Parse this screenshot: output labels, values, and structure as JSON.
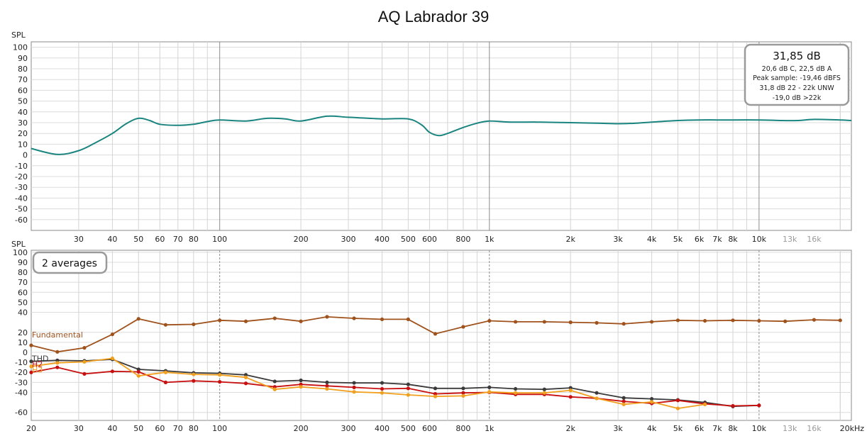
{
  "title": "AQ Labrador 39",
  "colors": {
    "frequency_response": "#1a8580",
    "fundamental": "#a0521c",
    "thd": "#3a3a3a",
    "h2": "#c81010",
    "h3": "#f0a01e"
  },
  "info_box": {
    "main": "31,85 dB",
    "lines": [
      "20,6 dB C, 22,5 dB A",
      "Peak sample: -19,46 dBFS",
      "31,8 dB 22 - 22k UNW",
      "-19,0 dB >22k"
    ]
  },
  "averages_label": "2 averages",
  "chart_data": [
    {
      "type": "line",
      "panel": "top",
      "y_unit_label": "SPL",
      "x_scale": "log",
      "xlim": [
        20,
        22000
      ],
      "ylim": [
        -70,
        105
      ],
      "grid": true,
      "y_ticks": [
        100,
        90,
        80,
        70,
        60,
        50,
        40,
        30,
        20,
        10,
        0,
        -10,
        -20,
        -30,
        -40,
        -50,
        -60
      ],
      "x_tick_labels": [
        {
          "v": 30,
          "t": "30"
        },
        {
          "v": 40,
          "t": "40"
        },
        {
          "v": 50,
          "t": "50"
        },
        {
          "v": 60,
          "t": "60"
        },
        {
          "v": 70,
          "t": "70"
        },
        {
          "v": 80,
          "t": "80"
        },
        {
          "v": 100,
          "t": "100"
        },
        {
          "v": 200,
          "t": "200"
        },
        {
          "v": 300,
          "t": "300"
        },
        {
          "v": 400,
          "t": "400"
        },
        {
          "v": 500,
          "t": "500"
        },
        {
          "v": 600,
          "t": "600"
        },
        {
          "v": 800,
          "t": "800"
        },
        {
          "v": 1000,
          "t": "1k"
        },
        {
          "v": 2000,
          "t": "2k"
        },
        {
          "v": 3000,
          "t": "3k"
        },
        {
          "v": 4000,
          "t": "4k"
        },
        {
          "v": 5000,
          "t": "5k"
        },
        {
          "v": 6000,
          "t": "6k"
        },
        {
          "v": 7000,
          "t": "7k"
        },
        {
          "v": 8000,
          "t": "8k"
        },
        {
          "v": 10000,
          "t": "10k"
        },
        {
          "v": 13000,
          "t": "13k",
          "dim": true
        },
        {
          "v": 16000,
          "t": "16k",
          "dim": true
        }
      ],
      "series": [
        {
          "key": "frequency_response",
          "x": [
            20,
            25,
            30,
            35,
            40,
            45,
            50,
            55,
            60,
            70,
            80,
            90,
            100,
            125,
            150,
            175,
            200,
            250,
            300,
            400,
            500,
            560,
            600,
            650,
            700,
            800,
            900,
            1000,
            1200,
            1500,
            2000,
            2500,
            3000,
            3500,
            4000,
            5000,
            6000,
            7000,
            8000,
            10000,
            12000,
            14000,
            16000,
            20000,
            22000
          ],
          "y": [
            6,
            0.5,
            4,
            12,
            20,
            29,
            34,
            32,
            28.5,
            27.5,
            28.5,
            31,
            32.5,
            31.5,
            34,
            33.5,
            31.5,
            36,
            35,
            33.5,
            33.5,
            28,
            21,
            18,
            20,
            25.5,
            29.5,
            31.5,
            30.5,
            30.5,
            30,
            29.5,
            29,
            29.5,
            30.5,
            32,
            32.5,
            32.5,
            32.5,
            32.5,
            32,
            32,
            33,
            32.5,
            32
          ]
        }
      ]
    },
    {
      "type": "line",
      "panel": "bottom",
      "y_unit_label": "SPL",
      "x_scale": "log",
      "xlim": [
        20,
        22000
      ],
      "ylim": [
        -68,
        102
      ],
      "grid": true,
      "y_ticks": [
        100,
        90,
        80,
        70,
        60,
        50,
        40,
        20,
        10,
        0,
        -10,
        -20,
        -30,
        -40,
        -60
      ],
      "x_tick_labels": [
        {
          "v": 20,
          "t": "20"
        },
        {
          "v": 30,
          "t": "30"
        },
        {
          "v": 40,
          "t": "40"
        },
        {
          "v": 50,
          "t": "50"
        },
        {
          "v": 60,
          "t": "60"
        },
        {
          "v": 70,
          "t": "70"
        },
        {
          "v": 80,
          "t": "80"
        },
        {
          "v": 100,
          "t": "100"
        },
        {
          "v": 200,
          "t": "200"
        },
        {
          "v": 300,
          "t": "300"
        },
        {
          "v": 400,
          "t": "400"
        },
        {
          "v": 500,
          "t": "500"
        },
        {
          "v": 600,
          "t": "600"
        },
        {
          "v": 800,
          "t": "800"
        },
        {
          "v": 1000,
          "t": "1k"
        },
        {
          "v": 2000,
          "t": "2k"
        },
        {
          "v": 3000,
          "t": "3k"
        },
        {
          "v": 4000,
          "t": "4k"
        },
        {
          "v": 5000,
          "t": "5k"
        },
        {
          "v": 6000,
          "t": "6k"
        },
        {
          "v": 7000,
          "t": "7k"
        },
        {
          "v": 8000,
          "t": "8k"
        },
        {
          "v": 10000,
          "t": "10k"
        },
        {
          "v": 13000,
          "t": "13k",
          "dim": true
        },
        {
          "v": 16000,
          "t": "16k",
          "dim": true
        },
        {
          "v": 20000,
          "t": "20kHz"
        }
      ],
      "series": [
        {
          "name": "Fundamental",
          "key": "fundamental",
          "x": [
            20,
            25,
            31.5,
            40,
            50,
            63,
            80,
            100,
            125,
            160,
            200,
            250,
            315,
            400,
            500,
            630,
            800,
            1000,
            1250,
            1600,
            2000,
            2500,
            3150,
            4000,
            5000,
            6300,
            8000,
            10000,
            12500,
            16000,
            20000
          ],
          "y": [
            7,
            0.5,
            4.5,
            18,
            33.5,
            27.5,
            28,
            32,
            31,
            34,
            31,
            35.5,
            34,
            33,
            33,
            18.5,
            25.5,
            31.5,
            30.5,
            30.5,
            30,
            29.5,
            28.5,
            30.5,
            32,
            31.5,
            32,
            31.5,
            31,
            32.5,
            32
          ]
        },
        {
          "name": "THD",
          "key": "thd",
          "x": [
            20,
            25,
            31.5,
            40,
            50,
            63,
            80,
            100,
            125,
            160,
            200,
            250,
            315,
            400,
            500,
            630,
            800,
            1000,
            1250,
            1600,
            2000,
            2500,
            3150,
            4000,
            5000,
            6300,
            8000,
            10000
          ],
          "y": [
            -9,
            -8,
            -8.5,
            -7,
            -17,
            -18.5,
            -20.5,
            -21,
            -22.5,
            -29,
            -28,
            -30,
            -30.5,
            -30.5,
            -32,
            -36,
            -36,
            -35,
            -36.5,
            -37,
            -35.5,
            -40.5,
            -45.5,
            -46.5,
            -47.5,
            -50,
            -54,
            -53
          ]
        },
        {
          "name": "H2",
          "key": "h2",
          "x": [
            20,
            25,
            31.5,
            40,
            50,
            63,
            80,
            100,
            125,
            160,
            200,
            250,
            315,
            400,
            500,
            630,
            800,
            1000,
            1250,
            1600,
            2000,
            2500,
            3150,
            4000,
            5000,
            6300,
            8000,
            10000
          ],
          "y": [
            -20,
            -15,
            -21.5,
            -19,
            -19.5,
            -30,
            -28.5,
            -29.5,
            -31,
            -34.5,
            -32,
            -33.5,
            -35,
            -36.5,
            -36,
            -41.5,
            -40.5,
            -40,
            -42,
            -42,
            -44.5,
            -46,
            -49,
            -51,
            -48,
            -51.5,
            -53.5,
            -53
          ]
        },
        {
          "name": "H3",
          "key": "h3",
          "x": [
            20,
            25,
            31.5,
            40,
            50,
            63,
            80,
            100,
            125,
            160,
            200,
            250,
            315,
            400,
            500,
            630,
            800,
            1000,
            1250,
            1600,
            2000,
            2500,
            3150,
            4000,
            5000,
            6300
          ],
          "y": [
            -14,
            -10.5,
            -9.5,
            -6,
            -23.5,
            -20,
            -22,
            -22.5,
            -25,
            -37,
            -34.5,
            -36.5,
            -39.5,
            -40.5,
            -42.5,
            -44,
            -43.5,
            -39.5,
            -40.5,
            -40.5,
            -38,
            -46,
            -52,
            -49.5,
            -56,
            -52
          ]
        }
      ]
    }
  ]
}
